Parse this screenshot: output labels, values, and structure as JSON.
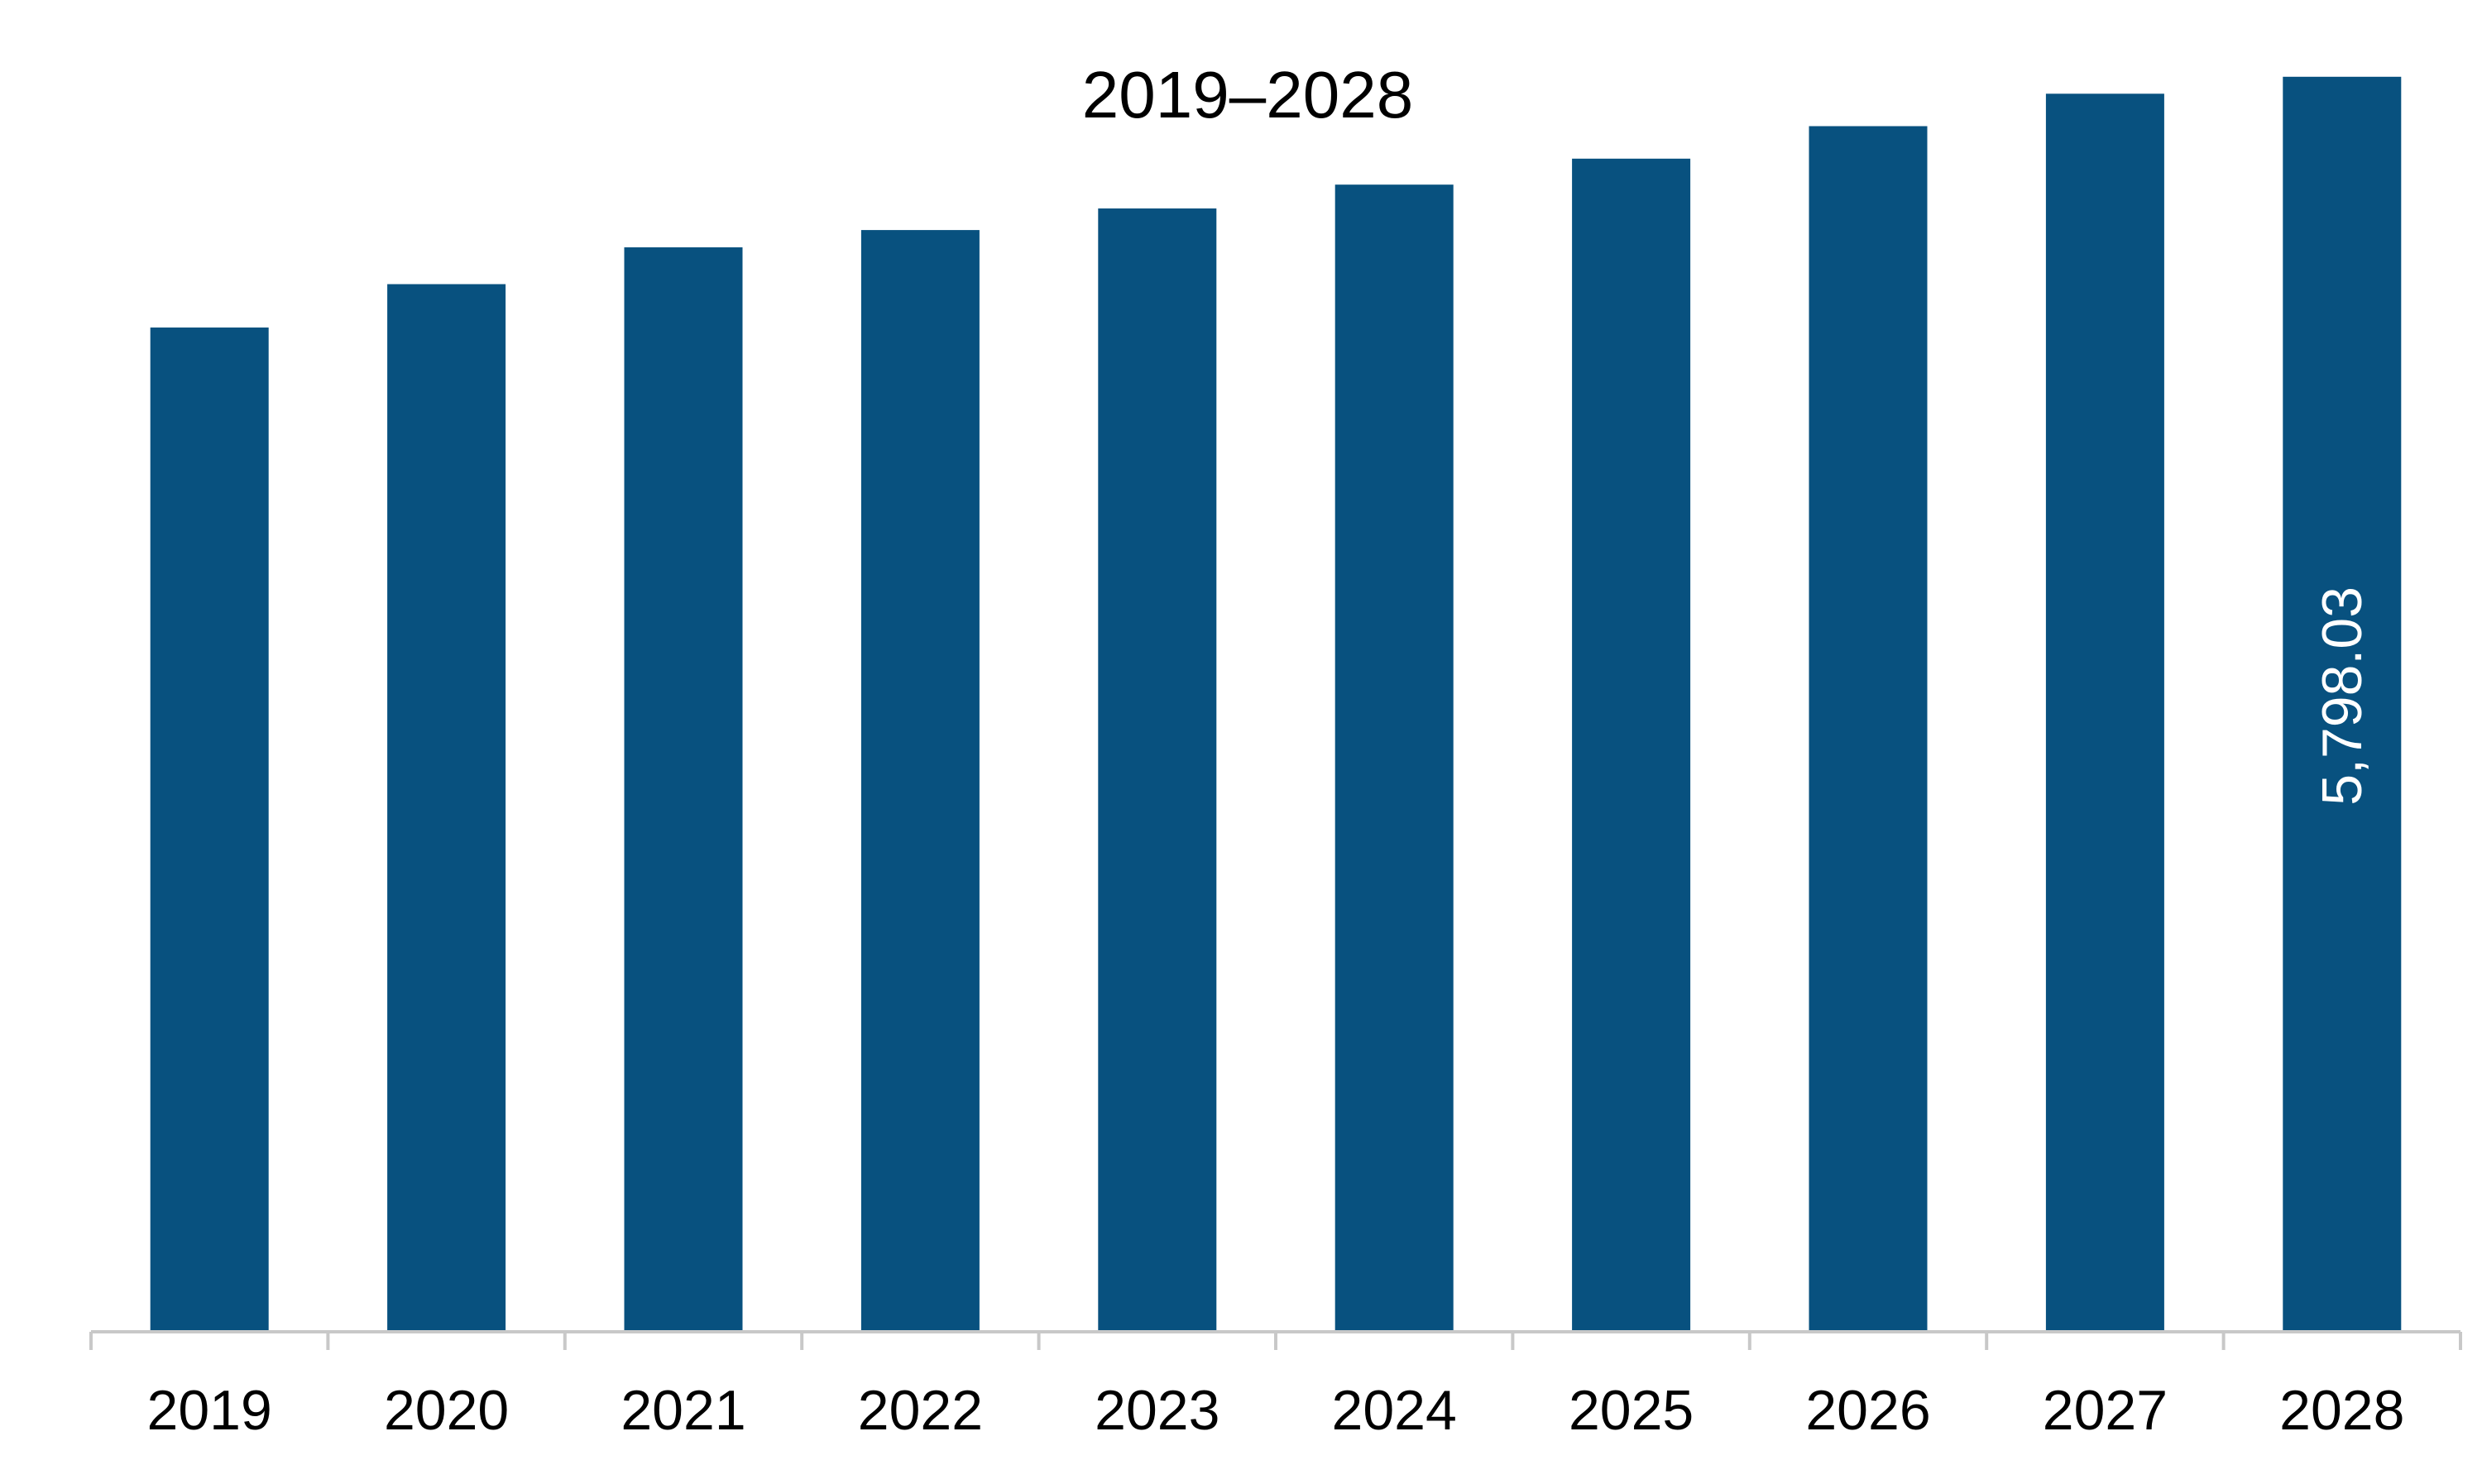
{
  "chart_data": {
    "type": "bar",
    "title": "2019–2028",
    "xlabel": "",
    "ylabel": "",
    "categories": [
      "2019",
      "2020",
      "2021",
      "2022",
      "2023",
      "2024",
      "2025",
      "2026",
      "2027",
      "2028"
    ],
    "values": [
      4640,
      4840,
      5010,
      5090,
      5190,
      5300,
      5420,
      5570,
      5720,
      5798.03
    ],
    "ylim": [
      0,
      6000
    ],
    "data_labels": [
      "",
      "",
      "",
      "",
      "",
      "",
      "",
      "",
      "",
      "5,798.03"
    ],
    "bar_color": "#08517f",
    "grid": false,
    "legend": "none"
  }
}
